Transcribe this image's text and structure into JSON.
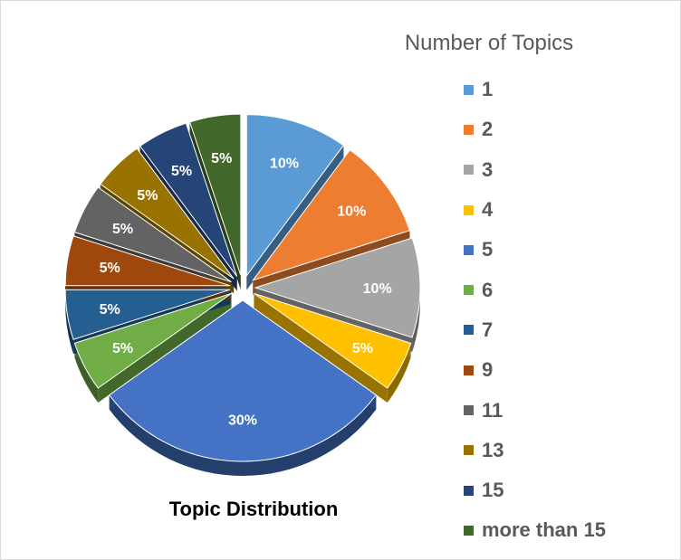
{
  "chart_data": {
    "type": "pie",
    "title": "Topic Distribution",
    "legend_title": "Number of Topics",
    "legend_position": "right",
    "categories": [
      "1",
      "2",
      "3",
      "4",
      "5",
      "6",
      "7",
      "9",
      "11",
      "13",
      "15",
      "more than 15"
    ],
    "values": [
      10,
      10,
      10,
      5,
      30,
      5,
      5,
      5,
      5,
      5,
      5,
      5
    ],
    "data_labels": [
      "10%",
      "10%",
      "10%",
      "5%",
      "30%",
      "5%",
      "5%",
      "5%",
      "5%",
      "5%",
      "5%",
      "5%"
    ],
    "unit": "%",
    "colors": [
      "#5B9BD5",
      "#ED7D31",
      "#A5A5A5",
      "#FFC000",
      "#4472C4",
      "#70AD47",
      "#255E91",
      "#9E480E",
      "#636363",
      "#997300",
      "#264478",
      "#43682B"
    ],
    "style": "3d exploded pie"
  }
}
